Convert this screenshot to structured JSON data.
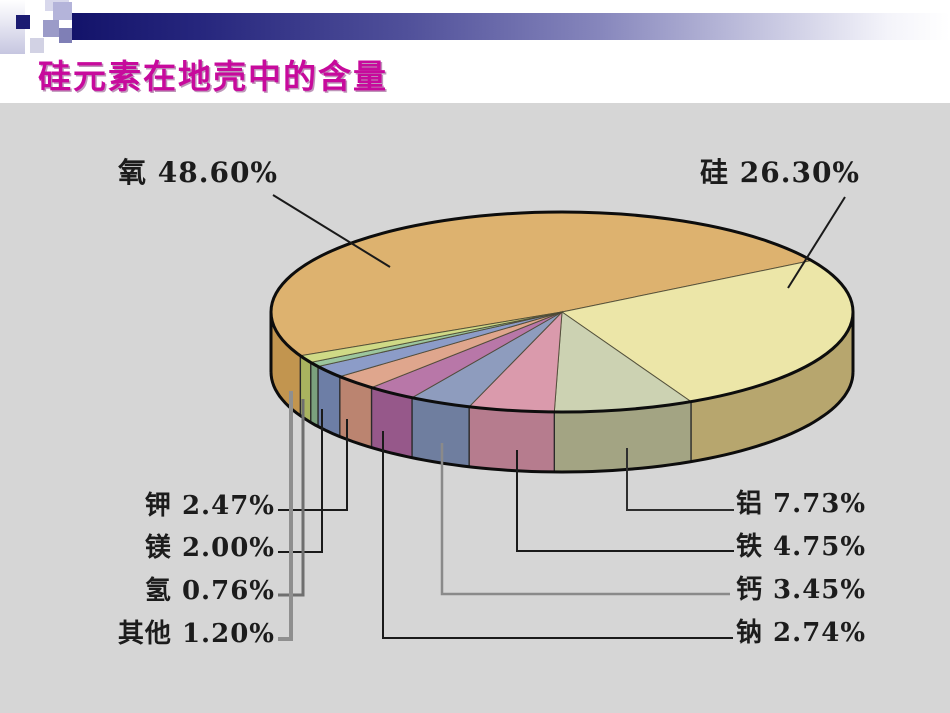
{
  "slide": {
    "title": "硅元素在地壳中的含量",
    "title_color": "#C70A9C",
    "header_bar_color": "#14146B",
    "panel_bg": "#D6D6D6",
    "background": "#FFFFFF"
  },
  "chart_data": {
    "type": "pie",
    "title": "硅元素在地壳中的含量",
    "subtitle": "",
    "unit": "percent",
    "style": "3d-pie-with-callout-labels",
    "legend_position": "callout-labels",
    "total": 100,
    "slices": [
      {
        "label": "氧",
        "value": 48.6,
        "display": "氧 48.60%",
        "top_color": "#DDB26F",
        "side_color": "#C2954F"
      },
      {
        "label": "硅",
        "value": 26.3,
        "display": "硅 26.30%",
        "top_color": "#ECE6A8",
        "side_color": "#B7A66E"
      },
      {
        "label": "铝",
        "value": 7.73,
        "display": "铝 7.73%",
        "top_color": "#CCD2B2",
        "side_color": "#A3A483"
      },
      {
        "label": "铁",
        "value": 4.75,
        "display": "铁 4.75%",
        "top_color": "#DA9AAC",
        "side_color": "#B67C8E"
      },
      {
        "label": "钙",
        "value": 3.45,
        "display": "钙 3.45%",
        "top_color": "#8E9CBE",
        "side_color": "#6F7E9F"
      },
      {
        "label": "钠",
        "value": 2.74,
        "display": "钠 2.74%",
        "top_color": "#B877A8",
        "side_color": "#96588A"
      },
      {
        "label": "钾",
        "value": 2.47,
        "display": "钾 2.47%",
        "top_color": "#DFA68D",
        "side_color": "#BB8470"
      },
      {
        "label": "镁",
        "value": 2.0,
        "display": "镁 2.00%",
        "top_color": "#8C9CC8",
        "side_color": "#6D7EA6"
      },
      {
        "label": "氢",
        "value": 0.76,
        "display": "氢 0.76%",
        "top_color": "#9CC69E",
        "side_color": "#7BA17D"
      },
      {
        "label": "其他",
        "value": 1.2,
        "display": "其他 1.20%",
        "top_color": "#CFDA86",
        "side_color": "#A9B35F"
      }
    ]
  }
}
